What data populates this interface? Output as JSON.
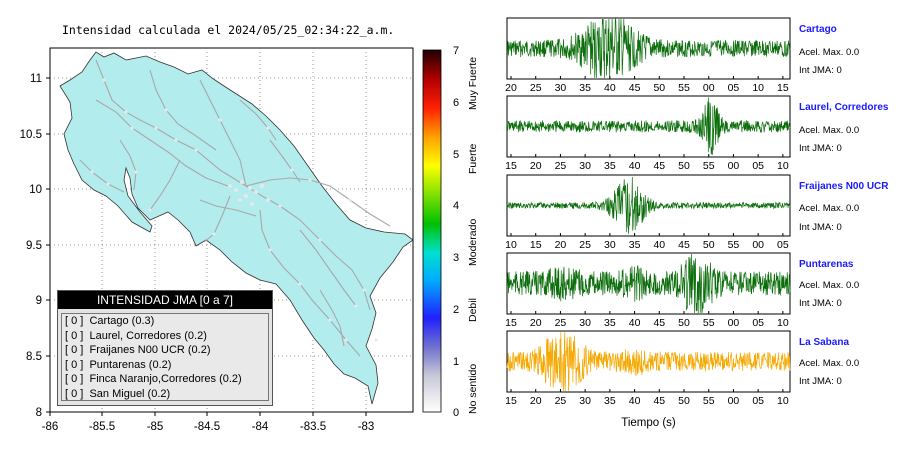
{
  "map": {
    "title": "Intensidad calculada el 2024/05/25_02:34:22_a.m.",
    "x_ticks": [
      "-86",
      "-85.5",
      "-85",
      "-84.5",
      "-84",
      "-83.5",
      "-83"
    ],
    "y_ticks": [
      "11",
      "10.5",
      "10",
      "9.5",
      "9",
      "8.5",
      "8"
    ],
    "land_color": "#b3eced",
    "road_color": "#a8a8a8"
  },
  "legend": {
    "title": "INTENSIDAD JMA [0 a 7]",
    "items": [
      {
        "level": "[ 0 ]",
        "name": "Cartago (0.3)"
      },
      {
        "level": "[ 0 ]",
        "name": "Laurel, Corredores (0.2)"
      },
      {
        "level": "[ 0 ]",
        "name": "Fraijanes N00 UCR (0.2)"
      },
      {
        "level": "[ 0 ]",
        "name": "Puntarenas (0.2)"
      },
      {
        "level": "[ 0 ]",
        "name": "Finca Naranjo,Corredores (0.2)"
      },
      {
        "level": "[ 0 ]",
        "name": "San Miguel (0.2)"
      }
    ]
  },
  "scale": {
    "ticks": [
      "0",
      "1",
      "2",
      "3",
      "4",
      "5",
      "6",
      "7"
    ],
    "labels": [
      "No sentido",
      "Debil",
      "Moderado",
      "Fuerte",
      "Muy Fuerte"
    ]
  },
  "chart_data": [
    {
      "type": "line",
      "station": "Cartago",
      "accel_label": "Acel. Max. 0.0",
      "jma_label": "Int JMA: 0",
      "x_ticks": [
        "20",
        "25",
        "30",
        "35",
        "40",
        "45",
        "50",
        "55",
        "00",
        "05",
        "10",
        "15"
      ],
      "color": "#0b6e0b"
    },
    {
      "type": "line",
      "station": "Laurel, Corredores",
      "accel_label": "Acel. Max. 0.0",
      "jma_label": "Int JMA: 0",
      "x_ticks": [
        "15",
        "20",
        "25",
        "30",
        "35",
        "40",
        "45",
        "50",
        "55",
        "00",
        "05",
        "10"
      ],
      "color": "#0b6e0b"
    },
    {
      "type": "line",
      "station": "Fraijanes N00 UCR",
      "accel_label": "Acel. Max. 0.0",
      "jma_label": "Int JMA: 0",
      "x_ticks": [
        "10",
        "15",
        "20",
        "25",
        "30",
        "35",
        "40",
        "45",
        "50",
        "55",
        "00",
        "05"
      ],
      "color": "#0b6e0b"
    },
    {
      "type": "line",
      "station": "Puntarenas",
      "accel_label": "Acel. Max. 0.0",
      "jma_label": "Int JMA: 0",
      "x_ticks": [
        "15",
        "20",
        "25",
        "30",
        "35",
        "40",
        "45",
        "50",
        "55",
        "00",
        "05",
        "10"
      ],
      "color": "#0b6e0b"
    },
    {
      "type": "line",
      "station": "La Sabana",
      "accel_label": "Acel. Max. 0.0",
      "jma_label": "Int JMA: 0",
      "x_ticks": [
        "15",
        "20",
        "25",
        "30",
        "35",
        "40",
        "45",
        "50",
        "55",
        "00",
        "05",
        "10"
      ],
      "color": "#f5a800",
      "xlabel": "Tiempo (s)"
    }
  ]
}
